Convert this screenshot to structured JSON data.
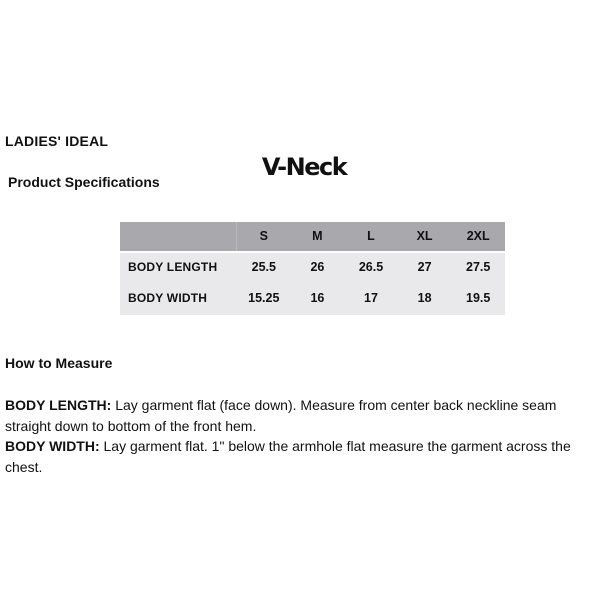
{
  "page": {
    "brand": "LADIES' IDEAL",
    "product_name": "V-Neck",
    "section_title": "Product Specifications"
  },
  "spec_table": {
    "size_columns": [
      "S",
      "M",
      "L",
      "XL",
      "2XL"
    ],
    "rows": [
      {
        "label": "BODY LENGTH",
        "values": [
          "25.5",
          "26",
          "26.5",
          "27",
          "27.5"
        ]
      },
      {
        "label": "BODY WIDTH",
        "values": [
          "15.25",
          "16",
          "17",
          "18",
          "19.5"
        ]
      }
    ]
  },
  "how_to_measure": {
    "title": "How to Measure",
    "instructions": [
      {
        "label": "BODY LENGTH:",
        "text": "Lay garment flat (face down). Measure from center back neckline seam straight down to bottom of the front hem."
      },
      {
        "label": "BODY WIDTH:",
        "text": "Lay garment flat. 1\" below the armhole flat measure the garment across the chest."
      }
    ]
  },
  "colors": {
    "table_header_bg": "#a9a8ac",
    "table_body_bg": "#e9e8ea",
    "text": "#111111",
    "background": "#ffffff"
  }
}
